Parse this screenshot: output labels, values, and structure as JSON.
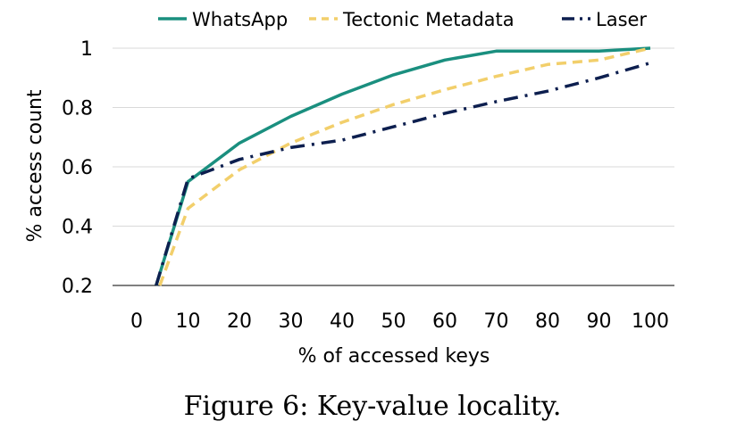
{
  "caption": "Figure 6: Key-value locality.",
  "chart_data": {
    "type": "line",
    "title": "",
    "xlabel": "% of accessed keys",
    "ylabel": "% access count",
    "x_categories": [
      "0",
      "10",
      "20",
      "30",
      "40",
      "50",
      "60",
      "70",
      "80",
      "90",
      "100"
    ],
    "ylim": [
      0.2,
      1.0
    ],
    "y_ticks": [
      "0.2",
      "0.4",
      "0.6",
      "0.8",
      "1"
    ],
    "grid": "horizontal",
    "legend_position": "top",
    "series": [
      {
        "name": "WhatsApp",
        "color": "#1a8f7f",
        "style": "solid",
        "points": [
          [
            3.8,
            0.2
          ],
          [
            10,
            0.55
          ],
          [
            20,
            0.68
          ],
          [
            30,
            0.77
          ],
          [
            40,
            0.845
          ],
          [
            50,
            0.91
          ],
          [
            60,
            0.96
          ],
          [
            70,
            0.99
          ],
          [
            80,
            0.99
          ],
          [
            90,
            0.99
          ],
          [
            100,
            1.0
          ]
        ]
      },
      {
        "name": "Tectonic Metadata",
        "color": "#f2cf6b",
        "style": "dashed",
        "points": [
          [
            4.5,
            0.2
          ],
          [
            10,
            0.46
          ],
          [
            20,
            0.59
          ],
          [
            30,
            0.68
          ],
          [
            40,
            0.75
          ],
          [
            50,
            0.81
          ],
          [
            60,
            0.86
          ],
          [
            70,
            0.905
          ],
          [
            80,
            0.945
          ],
          [
            90,
            0.96
          ],
          [
            100,
            1.0
          ]
        ]
      },
      {
        "name": "Laser",
        "color": "#0d1f4f",
        "style": "dash-dot",
        "points": [
          [
            3.8,
            0.2
          ],
          [
            10,
            0.56
          ],
          [
            20,
            0.625
          ],
          [
            30,
            0.665
          ],
          [
            40,
            0.69
          ],
          [
            50,
            0.735
          ],
          [
            60,
            0.78
          ],
          [
            70,
            0.82
          ],
          [
            80,
            0.855
          ],
          [
            90,
            0.9
          ],
          [
            100,
            0.95
          ]
        ]
      }
    ]
  }
}
